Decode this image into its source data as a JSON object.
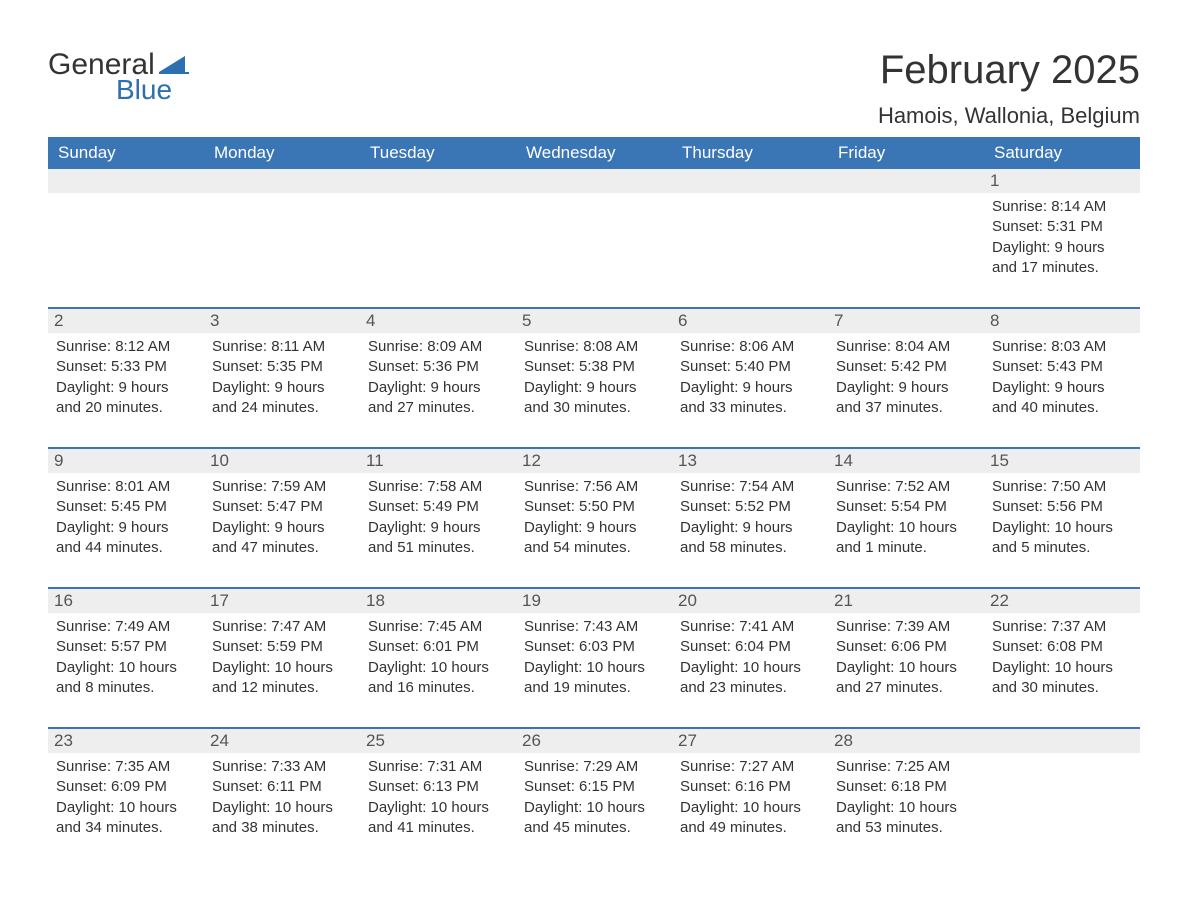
{
  "logo": {
    "text_general": "General",
    "text_blue": "Blue",
    "flag_color": "#2e6fb0"
  },
  "title": "February 2025",
  "location": "Hamois, Wallonia, Belgium",
  "colors": {
    "header_bg": "#3a76b5",
    "header_text": "#ffffff",
    "daynum_bg": "#eeeeee",
    "week_border": "#3a76b5",
    "body_text": "#333333",
    "background": "#ffffff"
  },
  "typography": {
    "title_fontsize": 40,
    "location_fontsize": 22,
    "weekday_fontsize": 17,
    "daynum_fontsize": 17,
    "dayinfo_fontsize": 15,
    "font_family": "Arial"
  },
  "weekdays": [
    "Sunday",
    "Monday",
    "Tuesday",
    "Wednesday",
    "Thursday",
    "Friday",
    "Saturday"
  ],
  "weeks": [
    [
      {
        "day": "",
        "sunrise": "",
        "sunset": "",
        "daylight": ""
      },
      {
        "day": "",
        "sunrise": "",
        "sunset": "",
        "daylight": ""
      },
      {
        "day": "",
        "sunrise": "",
        "sunset": "",
        "daylight": ""
      },
      {
        "day": "",
        "sunrise": "",
        "sunset": "",
        "daylight": ""
      },
      {
        "day": "",
        "sunrise": "",
        "sunset": "",
        "daylight": ""
      },
      {
        "day": "",
        "sunrise": "",
        "sunset": "",
        "daylight": ""
      },
      {
        "day": "1",
        "sunrise": "Sunrise: 8:14 AM",
        "sunset": "Sunset: 5:31 PM",
        "daylight": "Daylight: 9 hours and 17 minutes."
      }
    ],
    [
      {
        "day": "2",
        "sunrise": "Sunrise: 8:12 AM",
        "sunset": "Sunset: 5:33 PM",
        "daylight": "Daylight: 9 hours and 20 minutes."
      },
      {
        "day": "3",
        "sunrise": "Sunrise: 8:11 AM",
        "sunset": "Sunset: 5:35 PM",
        "daylight": "Daylight: 9 hours and 24 minutes."
      },
      {
        "day": "4",
        "sunrise": "Sunrise: 8:09 AM",
        "sunset": "Sunset: 5:36 PM",
        "daylight": "Daylight: 9 hours and 27 minutes."
      },
      {
        "day": "5",
        "sunrise": "Sunrise: 8:08 AM",
        "sunset": "Sunset: 5:38 PM",
        "daylight": "Daylight: 9 hours and 30 minutes."
      },
      {
        "day": "6",
        "sunrise": "Sunrise: 8:06 AM",
        "sunset": "Sunset: 5:40 PM",
        "daylight": "Daylight: 9 hours and 33 minutes."
      },
      {
        "day": "7",
        "sunrise": "Sunrise: 8:04 AM",
        "sunset": "Sunset: 5:42 PM",
        "daylight": "Daylight: 9 hours and 37 minutes."
      },
      {
        "day": "8",
        "sunrise": "Sunrise: 8:03 AM",
        "sunset": "Sunset: 5:43 PM",
        "daylight": "Daylight: 9 hours and 40 minutes."
      }
    ],
    [
      {
        "day": "9",
        "sunrise": "Sunrise: 8:01 AM",
        "sunset": "Sunset: 5:45 PM",
        "daylight": "Daylight: 9 hours and 44 minutes."
      },
      {
        "day": "10",
        "sunrise": "Sunrise: 7:59 AM",
        "sunset": "Sunset: 5:47 PM",
        "daylight": "Daylight: 9 hours and 47 minutes."
      },
      {
        "day": "11",
        "sunrise": "Sunrise: 7:58 AM",
        "sunset": "Sunset: 5:49 PM",
        "daylight": "Daylight: 9 hours and 51 minutes."
      },
      {
        "day": "12",
        "sunrise": "Sunrise: 7:56 AM",
        "sunset": "Sunset: 5:50 PM",
        "daylight": "Daylight: 9 hours and 54 minutes."
      },
      {
        "day": "13",
        "sunrise": "Sunrise: 7:54 AM",
        "sunset": "Sunset: 5:52 PM",
        "daylight": "Daylight: 9 hours and 58 minutes."
      },
      {
        "day": "14",
        "sunrise": "Sunrise: 7:52 AM",
        "sunset": "Sunset: 5:54 PM",
        "daylight": "Daylight: 10 hours and 1 minute."
      },
      {
        "day": "15",
        "sunrise": "Sunrise: 7:50 AM",
        "sunset": "Sunset: 5:56 PM",
        "daylight": "Daylight: 10 hours and 5 minutes."
      }
    ],
    [
      {
        "day": "16",
        "sunrise": "Sunrise: 7:49 AM",
        "sunset": "Sunset: 5:57 PM",
        "daylight": "Daylight: 10 hours and 8 minutes."
      },
      {
        "day": "17",
        "sunrise": "Sunrise: 7:47 AM",
        "sunset": "Sunset: 5:59 PM",
        "daylight": "Daylight: 10 hours and 12 minutes."
      },
      {
        "day": "18",
        "sunrise": "Sunrise: 7:45 AM",
        "sunset": "Sunset: 6:01 PM",
        "daylight": "Daylight: 10 hours and 16 minutes."
      },
      {
        "day": "19",
        "sunrise": "Sunrise: 7:43 AM",
        "sunset": "Sunset: 6:03 PM",
        "daylight": "Daylight: 10 hours and 19 minutes."
      },
      {
        "day": "20",
        "sunrise": "Sunrise: 7:41 AM",
        "sunset": "Sunset: 6:04 PM",
        "daylight": "Daylight: 10 hours and 23 minutes."
      },
      {
        "day": "21",
        "sunrise": "Sunrise: 7:39 AM",
        "sunset": "Sunset: 6:06 PM",
        "daylight": "Daylight: 10 hours and 27 minutes."
      },
      {
        "day": "22",
        "sunrise": "Sunrise: 7:37 AM",
        "sunset": "Sunset: 6:08 PM",
        "daylight": "Daylight: 10 hours and 30 minutes."
      }
    ],
    [
      {
        "day": "23",
        "sunrise": "Sunrise: 7:35 AM",
        "sunset": "Sunset: 6:09 PM",
        "daylight": "Daylight: 10 hours and 34 minutes."
      },
      {
        "day": "24",
        "sunrise": "Sunrise: 7:33 AM",
        "sunset": "Sunset: 6:11 PM",
        "daylight": "Daylight: 10 hours and 38 minutes."
      },
      {
        "day": "25",
        "sunrise": "Sunrise: 7:31 AM",
        "sunset": "Sunset: 6:13 PM",
        "daylight": "Daylight: 10 hours and 41 minutes."
      },
      {
        "day": "26",
        "sunrise": "Sunrise: 7:29 AM",
        "sunset": "Sunset: 6:15 PM",
        "daylight": "Daylight: 10 hours and 45 minutes."
      },
      {
        "day": "27",
        "sunrise": "Sunrise: 7:27 AM",
        "sunset": "Sunset: 6:16 PM",
        "daylight": "Daylight: 10 hours and 49 minutes."
      },
      {
        "day": "28",
        "sunrise": "Sunrise: 7:25 AM",
        "sunset": "Sunset: 6:18 PM",
        "daylight": "Daylight: 10 hours and 53 minutes."
      },
      {
        "day": "",
        "sunrise": "",
        "sunset": "",
        "daylight": ""
      }
    ]
  ]
}
